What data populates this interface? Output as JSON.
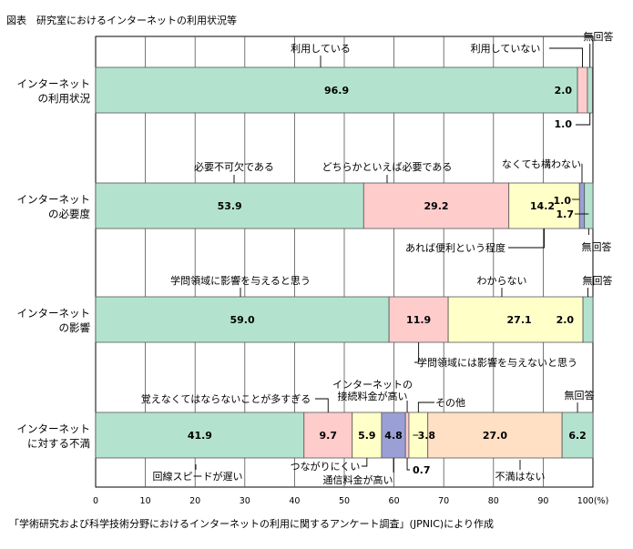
{
  "figure_title": "図表　研究室におけるインターネットの利用状況等",
  "source_note": "「学術研究および科学技術分野におけるインターネットの利用に関するアンケート調査」(JPNIC)により作成",
  "colors": {
    "green": "#b3e3cf",
    "pink": "#ffcccc",
    "yellow": "#ffffc8",
    "purple": "#9aa0d6",
    "peach": "#ffe0c4"
  },
  "chart_data": {
    "type": "bar",
    "orientation": "horizontal",
    "stacked": true,
    "xlim": [
      0,
      100
    ],
    "x_ticks": [
      "0",
      "10",
      "20",
      "30",
      "40",
      "50",
      "60",
      "70",
      "80",
      "90",
      "100(%)"
    ],
    "grid": true,
    "rows": [
      {
        "label": [
          "インターネット",
          "の利用状況"
        ],
        "segments": [
          {
            "name": "利用している",
            "value": 96.9,
            "value_label": "96.9",
            "color": "green"
          },
          {
            "name": "利用していない",
            "value": 2.0,
            "value_label": "2.0",
            "color": "pink"
          },
          {
            "name": "無回答",
            "value": 1.0,
            "value_label": "1.0",
            "color": "green"
          }
        ]
      },
      {
        "label": [
          "インターネット",
          "の必要度"
        ],
        "segments": [
          {
            "name": "必要不可欠である",
            "value": 53.9,
            "value_label": "53.9",
            "color": "green"
          },
          {
            "name": "どちらかといえば必要である",
            "value": 29.2,
            "value_label": "29.2",
            "color": "pink"
          },
          {
            "name": "あれば便利という程度",
            "value": 14.2,
            "value_label": "14.2",
            "color": "yellow"
          },
          {
            "name": "なくても構わない",
            "value": 1.0,
            "value_label": "1.0",
            "color": "purple"
          },
          {
            "name": "無回答",
            "value": 1.7,
            "value_label": "1.7",
            "color": "green"
          }
        ]
      },
      {
        "label": [
          "インターネット",
          "の影響"
        ],
        "segments": [
          {
            "name": "学問領域に影響を与えると思う",
            "value": 59.0,
            "value_label": "59.0",
            "color": "green"
          },
          {
            "name": "学問領域には影響を与えないと思う",
            "value": 11.9,
            "value_label": "11.9",
            "color": "pink"
          },
          {
            "name": "わからない",
            "value": 27.1,
            "value_label": "27.1",
            "color": "yellow"
          },
          {
            "name": "無回答",
            "value": 2.0,
            "value_label": "2.0",
            "color": "green"
          }
        ]
      },
      {
        "label": [
          "インターネット",
          "に対する不満"
        ],
        "segments": [
          {
            "name": "回線スピードが遅い",
            "value": 41.9,
            "value_label": "41.9",
            "color": "green"
          },
          {
            "name": "覚えなくてはならないことが多すぎる",
            "value": 9.7,
            "value_label": "9.7",
            "color": "pink"
          },
          {
            "name": "つながりにくい",
            "value": 5.9,
            "value_label": "5.9",
            "color": "yellow"
          },
          {
            "name": "通信料金が高い",
            "value": 4.8,
            "value_label": "4.8",
            "color": "purple"
          },
          {
            "name": "インターネットの接続料金が高い",
            "value": 0.7,
            "value_label": "0.7",
            "color": "pink"
          },
          {
            "name": "その他",
            "value": 3.8,
            "value_label": "3.8",
            "color": "yellow"
          },
          {
            "name": "不満はない",
            "value": 27.0,
            "value_label": "27.0",
            "color": "peach"
          },
          {
            "name": "無回答",
            "value": 6.2,
            "value_label": "6.2",
            "color": "green"
          }
        ]
      }
    ]
  }
}
